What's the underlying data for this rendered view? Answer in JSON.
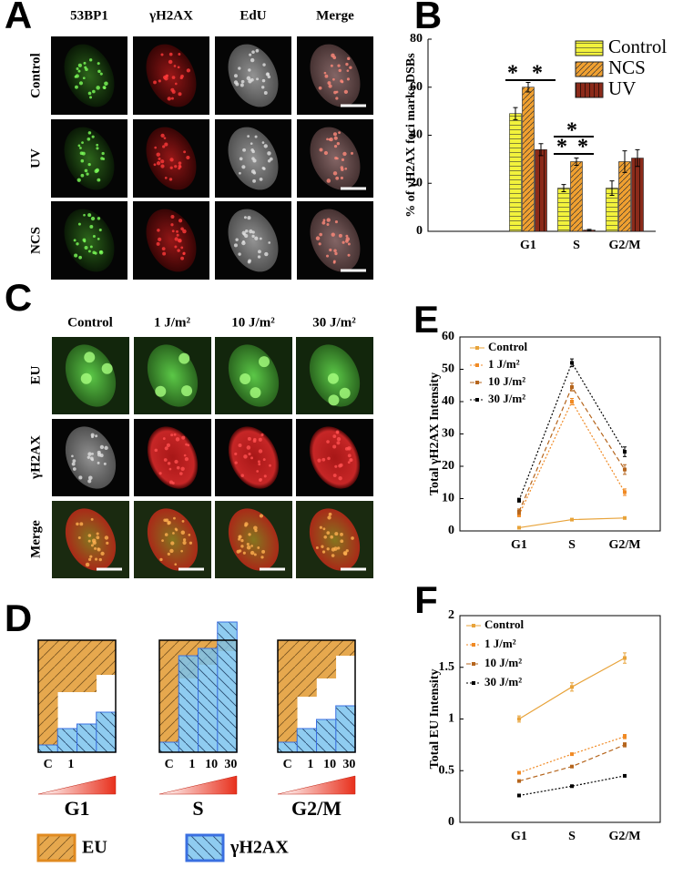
{
  "panel_labels": [
    "A",
    "B",
    "C",
    "D",
    "E",
    "F"
  ],
  "panel_a": {
    "columns": [
      "53BP1",
      "γH2AX",
      "EdU",
      "Merge"
    ],
    "rows": [
      "Control",
      "UV",
      "NCS"
    ]
  },
  "panel_c": {
    "columns": [
      "Control",
      "1 J/m²",
      "10 J/m²",
      "30 J/m²"
    ],
    "rows": [
      "EU",
      "γH2AX",
      "Merge"
    ]
  },
  "panel_d": {
    "groups": [
      "G1",
      "S",
      "G2/M"
    ],
    "ticks": [
      [
        "C",
        "1"
      ],
      [
        "C",
        "1",
        "10",
        "30"
      ],
      [
        "C",
        "1",
        "10",
        "30"
      ]
    ],
    "legend": [
      "EU",
      "γH2AX"
    ]
  },
  "chart_data": [
    {
      "type": "bar",
      "ylabel": "% of γH2AX foci marks DSBs",
      "categories": [
        "G1",
        "S",
        "G2/M"
      ],
      "series": [
        {
          "name": "Control",
          "color": "#f2f23c",
          "hatch": "horizontal",
          "values": [
            49,
            18,
            18
          ],
          "errors": [
            2.5,
            1.5,
            3
          ]
        },
        {
          "name": "NCS",
          "color": "#f0a030",
          "hatch": "diagonal",
          "values": [
            60,
            29,
            29
          ],
          "errors": [
            2,
            1.5,
            4.5
          ]
        },
        {
          "name": "UV",
          "color": "#8b2a1a",
          "hatch": "vertical",
          "values": [
            34,
            0.5,
            30.5
          ],
          "errors": [
            2.5,
            0.3,
            3.5
          ]
        }
      ],
      "ylim": [
        0,
        80
      ],
      "yticks": [
        0,
        20,
        40,
        60,
        80
      ],
      "annotations": [
        "*",
        "*",
        "*",
        "*",
        "*"
      ],
      "legend": "upper right"
    },
    {
      "type": "line",
      "ylabel": "Total  γH2AX Intensity",
      "categories": [
        "G1",
        "S",
        "G2/M"
      ],
      "series": [
        {
          "name": "Control",
          "color": "#e8a33a",
          "line_style": "solid",
          "values": [
            1,
            3.5,
            4
          ],
          "errors": [
            0.2,
            0.3,
            0.3
          ]
        },
        {
          "name": "1 J/m²",
          "color": "#f08a24",
          "line_style": "dotted",
          "values": [
            5,
            40,
            12
          ],
          "errors": [
            0.6,
            1,
            1
          ]
        },
        {
          "name": "10 J/m²",
          "color": "#b5651d",
          "line_style": "dashed",
          "values": [
            6,
            44.5,
            19
          ],
          "errors": [
            0.8,
            1.2,
            1.5
          ]
        },
        {
          "name": "30 J/m²",
          "color": "#000000",
          "line_style": "dotted",
          "values": [
            9.5,
            52,
            24.5
          ],
          "errors": [
            0.6,
            1.2,
            1.5
          ]
        }
      ],
      "ylim": [
        0,
        60
      ],
      "yticks": [
        0,
        10,
        20,
        30,
        40,
        50,
        60
      ],
      "legend": "upper left"
    },
    {
      "type": "line",
      "ylabel": "Total  EU Intensity",
      "categories": [
        "G1",
        "S",
        "G2/M"
      ],
      "series": [
        {
          "name": "Control",
          "color": "#e8a33a",
          "line_style": "solid",
          "values": [
            1,
            1.31,
            1.59
          ],
          "errors": [
            0.03,
            0.04,
            0.05
          ]
        },
        {
          "name": "1 J/m²",
          "color": "#f08a24",
          "line_style": "dotted",
          "values": [
            0.48,
            0.66,
            0.83
          ],
          "errors": [
            0.01,
            0.01,
            0.02
          ]
        },
        {
          "name": "10 J/m²",
          "color": "#b5651d",
          "line_style": "dashed",
          "values": [
            0.4,
            0.54,
            0.75
          ],
          "errors": [
            0.01,
            0.01,
            0.02
          ]
        },
        {
          "name": "30 J/m²",
          "color": "#000000",
          "line_style": "dotted",
          "values": [
            0.26,
            0.35,
            0.45
          ],
          "errors": [
            0.01,
            0.01,
            0.01
          ]
        }
      ],
      "ylim": [
        0,
        2
      ],
      "yticks": [
        0,
        0.5,
        1,
        1.5,
        2
      ],
      "legend": "upper left"
    }
  ]
}
